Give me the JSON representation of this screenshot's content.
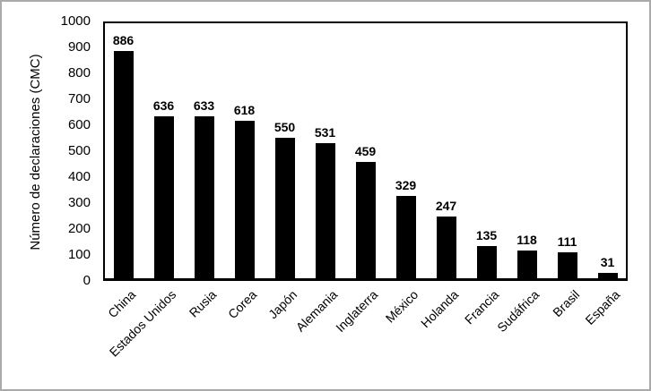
{
  "figure": {
    "background": "#ffffff",
    "outer_border_color": "#aaaaaa"
  },
  "chart_data": {
    "type": "bar",
    "title": "",
    "xlabel": "",
    "ylabel": "Número de declaraciones (CMC)",
    "categories": [
      "China",
      "Estados Unidos",
      "Rusia",
      "Corea",
      "Japón",
      "Alemania",
      "Inglaterra",
      "México",
      "Holanda",
      "Francia",
      "Sudáfrica",
      "Brasil",
      "España"
    ],
    "values": [
      886,
      636,
      633,
      618,
      550,
      531,
      459,
      329,
      247,
      135,
      118,
      111,
      31
    ],
    "value_labels": [
      "886",
      "636",
      "633",
      "618",
      "550",
      "531",
      "459",
      "329",
      "247",
      "135",
      "118",
      "111",
      "31"
    ],
    "ylim": [
      0,
      1000
    ],
    "ytick_step": 100,
    "ytick_labels": [
      "0",
      "100",
      "200",
      "300",
      "400",
      "500",
      "600",
      "700",
      "800",
      "900",
      "1000"
    ],
    "bar_color": "#000000",
    "plot_border_color": "#000000",
    "grid": false,
    "legend": "none",
    "x_label_rotation_deg": 45,
    "value_labels_visible": true
  }
}
